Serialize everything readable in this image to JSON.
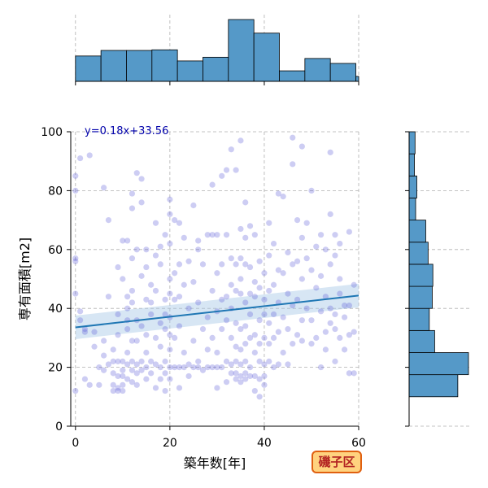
{
  "chart_data": {
    "type": "scatter",
    "subtype": "jointplot-with-regression-and-marginal-histograms",
    "xlabel": "築年数[年]",
    "ylabel": "専有面積[m2]",
    "xlim": [
      -1,
      60
    ],
    "ylim": [
      0,
      100
    ],
    "x_ticks": [
      0,
      20,
      40,
      60
    ],
    "y_ticks": [
      0,
      20,
      40,
      60,
      80,
      100
    ],
    "grid": true,
    "grid_style": "dashed",
    "equation_label": "y=0.18x+33.56",
    "regression": {
      "slope": 0.18,
      "intercept": 33.56,
      "x_range": [
        0,
        60
      ],
      "ci_halfwidth_at_ends": 4
    },
    "district_label": "磯子区",
    "colors": {
      "scatter_point": "#5a5ad6",
      "regression_line": "#1f77b4",
      "confidence_band": "#a6c8e6",
      "histogram_bar": "#5599c8",
      "histogram_edge": "#000000",
      "district_bg": "#ffd27f",
      "district_border": "#e06010",
      "equation": "#0000aa"
    },
    "scatter_points": [
      [
        0,
        85
      ],
      [
        0,
        80
      ],
      [
        0,
        57
      ],
      [
        0,
        56
      ],
      [
        0,
        45
      ],
      [
        0,
        12
      ],
      [
        1,
        91
      ],
      [
        1,
        39
      ],
      [
        1,
        36
      ],
      [
        2,
        33
      ],
      [
        2,
        32
      ],
      [
        2,
        16
      ],
      [
        3,
        92
      ],
      [
        3,
        14
      ],
      [
        4,
        32
      ],
      [
        4,
        27
      ],
      [
        5,
        20
      ],
      [
        5,
        14
      ],
      [
        6,
        81
      ],
      [
        6,
        29
      ],
      [
        6,
        24
      ],
      [
        6,
        19
      ],
      [
        7,
        70
      ],
      [
        7,
        44
      ],
      [
        7,
        21
      ],
      [
        8,
        26
      ],
      [
        8,
        22
      ],
      [
        8,
        18
      ],
      [
        8,
        14
      ],
      [
        8,
        12
      ],
      [
        9,
        54
      ],
      [
        9,
        38
      ],
      [
        9,
        31
      ],
      [
        9,
        22
      ],
      [
        9,
        17
      ],
      [
        9,
        13
      ],
      [
        9,
        12
      ],
      [
        10,
        63
      ],
      [
        10,
        50
      ],
      [
        10,
        22
      ],
      [
        10,
        19
      ],
      [
        10,
        17
      ],
      [
        10,
        14
      ],
      [
        10,
        12
      ],
      [
        11,
        63
      ],
      [
        11,
        44
      ],
      [
        11,
        40
      ],
      [
        11,
        36
      ],
      [
        11,
        33
      ],
      [
        11,
        25
      ],
      [
        11,
        21
      ],
      [
        11,
        16
      ],
      [
        12,
        79
      ],
      [
        12,
        74
      ],
      [
        12,
        57
      ],
      [
        12,
        46
      ],
      [
        12,
        42
      ],
      [
        12,
        29
      ],
      [
        12,
        22
      ],
      [
        12,
        19
      ],
      [
        12,
        15
      ],
      [
        13,
        86
      ],
      [
        13,
        60
      ],
      [
        13,
        36
      ],
      [
        13,
        29
      ],
      [
        13,
        21
      ],
      [
        13,
        18
      ],
      [
        13,
        14
      ],
      [
        14,
        84
      ],
      [
        14,
        76
      ],
      [
        14,
        51
      ],
      [
        14,
        34
      ],
      [
        14,
        22
      ],
      [
        14,
        19
      ],
      [
        15,
        60
      ],
      [
        15,
        54
      ],
      [
        15,
        43
      ],
      [
        15,
        31
      ],
      [
        15,
        25
      ],
      [
        15,
        20
      ],
      [
        15,
        16
      ],
      [
        16,
        48
      ],
      [
        16,
        42
      ],
      [
        16,
        38
      ],
      [
        16,
        22
      ],
      [
        16,
        18
      ],
      [
        17,
        69
      ],
      [
        17,
        58
      ],
      [
        17,
        46
      ],
      [
        17,
        30
      ],
      [
        17,
        21
      ],
      [
        17,
        13
      ],
      [
        18,
        61
      ],
      [
        18,
        55
      ],
      [
        18,
        35
      ],
      [
        18,
        27
      ],
      [
        18,
        20
      ],
      [
        18,
        16
      ],
      [
        19,
        65
      ],
      [
        19,
        43
      ],
      [
        19,
        38
      ],
      [
        19,
        33
      ],
      [
        19,
        22
      ],
      [
        19,
        18
      ],
      [
        19,
        12
      ],
      [
        20,
        77
      ],
      [
        20,
        72
      ],
      [
        20,
        62
      ],
      [
        20,
        50
      ],
      [
        20,
        45
      ],
      [
        20,
        37
      ],
      [
        20,
        31
      ],
      [
        20,
        26
      ],
      [
        20,
        20
      ],
      [
        20,
        16
      ],
      [
        21,
        70
      ],
      [
        21,
        52
      ],
      [
        21,
        43
      ],
      [
        21,
        30
      ],
      [
        21,
        20
      ],
      [
        22,
        69
      ],
      [
        22,
        55
      ],
      [
        22,
        44
      ],
      [
        22,
        34
      ],
      [
        22,
        20
      ],
      [
        22,
        13
      ],
      [
        23,
        64
      ],
      [
        23,
        48
      ],
      [
        23,
        25
      ],
      [
        23,
        20
      ],
      [
        24,
        56
      ],
      [
        24,
        40
      ],
      [
        24,
        21
      ],
      [
        24,
        17
      ],
      [
        25,
        75
      ],
      [
        25,
        49
      ],
      [
        25,
        29
      ],
      [
        25,
        20
      ],
      [
        26,
        63
      ],
      [
        26,
        60
      ],
      [
        26,
        42
      ],
      [
        26,
        22
      ],
      [
        26,
        20
      ],
      [
        27,
        55
      ],
      [
        27,
        33
      ],
      [
        27,
        19
      ],
      [
        28,
        65
      ],
      [
        28,
        37
      ],
      [
        28,
        26
      ],
      [
        28,
        20
      ],
      [
        29,
        82
      ],
      [
        29,
        65
      ],
      [
        29,
        46
      ],
      [
        29,
        30
      ],
      [
        29,
        20
      ],
      [
        30,
        65
      ],
      [
        30,
        52
      ],
      [
        30,
        39
      ],
      [
        30,
        25
      ],
      [
        30,
        20
      ],
      [
        30,
        13
      ],
      [
        31,
        85
      ],
      [
        31,
        55
      ],
      [
        31,
        43
      ],
      [
        31,
        33
      ],
      [
        31,
        20
      ],
      [
        32,
        87
      ],
      [
        32,
        65
      ],
      [
        32,
        44
      ],
      [
        32,
        36
      ],
      [
        32,
        22
      ],
      [
        32,
        15
      ],
      [
        33,
        94
      ],
      [
        33,
        57
      ],
      [
        33,
        48
      ],
      [
        33,
        40
      ],
      [
        33,
        30
      ],
      [
        33,
        21
      ],
      [
        33,
        18
      ],
      [
        34,
        87
      ],
      [
        34,
        55
      ],
      [
        34,
        46
      ],
      [
        34,
        35
      ],
      [
        34,
        27
      ],
      [
        34,
        22
      ],
      [
        34,
        18
      ],
      [
        34,
        16
      ],
      [
        35,
        97
      ],
      [
        35,
        67
      ],
      [
        35,
        57
      ],
      [
        35,
        50
      ],
      [
        35,
        45
      ],
      [
        35,
        33
      ],
      [
        35,
        26
      ],
      [
        35,
        21
      ],
      [
        35,
        17
      ],
      [
        35,
        15
      ],
      [
        36,
        76
      ],
      [
        36,
        64
      ],
      [
        36,
        55
      ],
      [
        36,
        42
      ],
      [
        36,
        34
      ],
      [
        36,
        28
      ],
      [
        36,
        22
      ],
      [
        36,
        18
      ],
      [
        36,
        16
      ],
      [
        37,
        68
      ],
      [
        37,
        54
      ],
      [
        37,
        45
      ],
      [
        37,
        38
      ],
      [
        37,
        30
      ],
      [
        37,
        20
      ],
      [
        37,
        17
      ],
      [
        38,
        65
      ],
      [
        38,
        49
      ],
      [
        38,
        44
      ],
      [
        38,
        31
      ],
      [
        38,
        25
      ],
      [
        38,
        17
      ],
      [
        38,
        12
      ],
      [
        39,
        56
      ],
      [
        39,
        47
      ],
      [
        39,
        36
      ],
      [
        39,
        28
      ],
      [
        39,
        22
      ],
      [
        39,
        16
      ],
      [
        39,
        10
      ],
      [
        40,
        52
      ],
      [
        40,
        43
      ],
      [
        40,
        38
      ],
      [
        40,
        30
      ],
      [
        40,
        21
      ],
      [
        40,
        17
      ],
      [
        40,
        14
      ],
      [
        41,
        69
      ],
      [
        41,
        58
      ],
      [
        41,
        46
      ],
      [
        41,
        35
      ],
      [
        41,
        28
      ],
      [
        41,
        22
      ],
      [
        42,
        62
      ],
      [
        42,
        48
      ],
      [
        42,
        38
      ],
      [
        42,
        30
      ],
      [
        42,
        20
      ],
      [
        43,
        79
      ],
      [
        43,
        53
      ],
      [
        43,
        42
      ],
      [
        43,
        32
      ],
      [
        43,
        21
      ],
      [
        44,
        78
      ],
      [
        44,
        52
      ],
      [
        44,
        37
      ],
      [
        44,
        25
      ],
      [
        45,
        59
      ],
      [
        45,
        45
      ],
      [
        45,
        33
      ],
      [
        45,
        21
      ],
      [
        46,
        98
      ],
      [
        46,
        89
      ],
      [
        46,
        55
      ],
      [
        46,
        41
      ],
      [
        46,
        28
      ],
      [
        47,
        70
      ],
      [
        47,
        56
      ],
      [
        47,
        43
      ],
      [
        47,
        31
      ],
      [
        48,
        95
      ],
      [
        48,
        64
      ],
      [
        48,
        50
      ],
      [
        48,
        36
      ],
      [
        48,
        29
      ],
      [
        49,
        69
      ],
      [
        49,
        57
      ],
      [
        49,
        40
      ],
      [
        50,
        80
      ],
      [
        50,
        53
      ],
      [
        50,
        36
      ],
      [
        50,
        28
      ],
      [
        51,
        61
      ],
      [
        51,
        47
      ],
      [
        51,
        30
      ],
      [
        52,
        65
      ],
      [
        52,
        51
      ],
      [
        52,
        39
      ],
      [
        52,
        20
      ],
      [
        53,
        60
      ],
      [
        53,
        44
      ],
      [
        53,
        32
      ],
      [
        53,
        26
      ],
      [
        54,
        93
      ],
      [
        54,
        72
      ],
      [
        54,
        55
      ],
      [
        54,
        40
      ],
      [
        54,
        35
      ],
      [
        55,
        65
      ],
      [
        55,
        58
      ],
      [
        55,
        38
      ],
      [
        55,
        33
      ],
      [
        55,
        22
      ],
      [
        56,
        62
      ],
      [
        56,
        50
      ],
      [
        56,
        45
      ],
      [
        56,
        30
      ],
      [
        57,
        41
      ],
      [
        57,
        37
      ],
      [
        57,
        26
      ],
      [
        58,
        66
      ],
      [
        58,
        41
      ],
      [
        58,
        31
      ],
      [
        58,
        18
      ],
      [
        59,
        48
      ],
      [
        59,
        32
      ],
      [
        59,
        18
      ]
    ],
    "x_histogram": {
      "bin_edges": [
        0,
        5.4,
        10.8,
        16.2,
        21.6,
        27,
        32.4,
        37.8,
        43.2,
        48.6,
        54,
        59.4,
        60
      ],
      "relative_heights": [
        0.41,
        0.5,
        0.5,
        0.51,
        0.33,
        0.39,
        1.0,
        0.78,
        0.17,
        0.37,
        0.29,
        0.08
      ]
    },
    "y_histogram": {
      "bin_edges": [
        10,
        17.5,
        25,
        32.5,
        40,
        47.5,
        55,
        62.5,
        70,
        77.5,
        85,
        92.5,
        100
      ],
      "relative_heights": [
        0.82,
        1.0,
        0.43,
        0.34,
        0.39,
        0.4,
        0.32,
        0.28,
        0.11,
        0.13,
        0.09,
        0.1
      ]
    }
  }
}
